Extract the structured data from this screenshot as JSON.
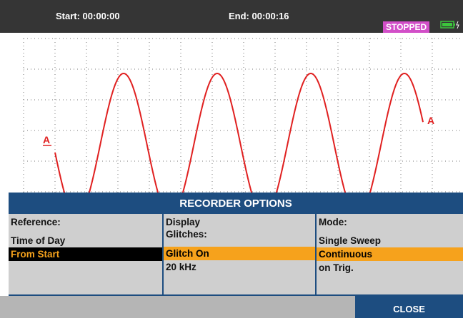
{
  "header": {
    "start": "Start: 00:00:00",
    "end": "End: 00:00:16",
    "status": "STOPPED"
  },
  "trace": {
    "left_marker": "A",
    "right_marker": "A"
  },
  "dialog": {
    "title": "RECORDER OPTIONS",
    "columns": [
      {
        "heading": [
          "Reference:"
        ],
        "options": [
          "Time of Day",
          "From Start"
        ],
        "selected": 1,
        "focused": true
      },
      {
        "heading": [
          "Display",
          "Glitches:"
        ],
        "options": [
          "Glitch On",
          "20 kHz"
        ],
        "selected": 0,
        "focused": false
      },
      {
        "heading": [
          "Mode:"
        ],
        "options": [
          "Single Sweep",
          "Continuous",
          "on Trig."
        ],
        "selected": 1,
        "focused": false
      }
    ],
    "close": "CLOSE"
  }
}
